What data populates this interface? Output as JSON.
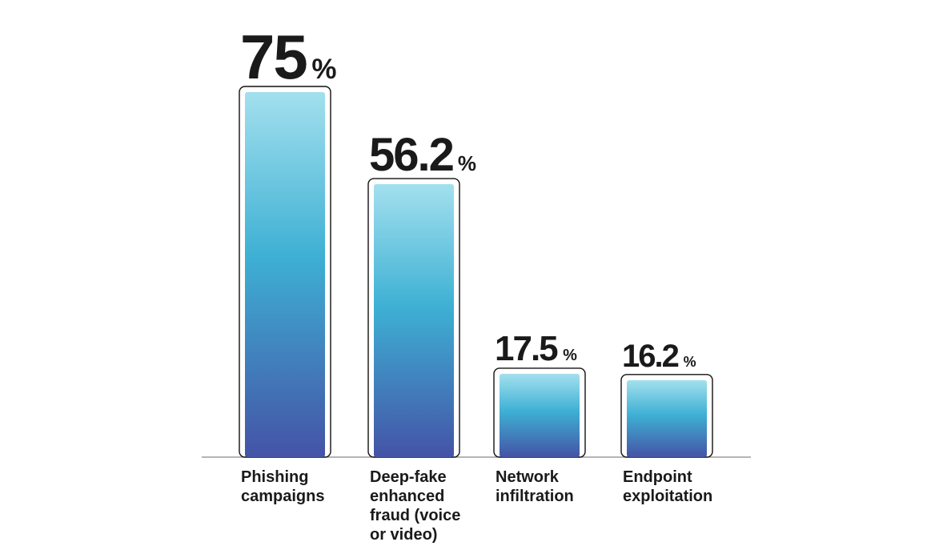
{
  "chart_data": {
    "type": "bar",
    "categories": [
      "Phishing campaigns",
      "Deep-fake enhanced fraud (voice or video)",
      "Network infiltration",
      "Endpoint exploitation"
    ],
    "category_lines": [
      [
        "Phishing",
        "campaigns"
      ],
      [
        "Deep-fake",
        "enhanced",
        "fraud (voice",
        "or video)"
      ],
      [
        "Network",
        "infiltration"
      ],
      [
        "Endpoint",
        "exploitation"
      ]
    ],
    "values": [
      75,
      56.2,
      17.5,
      16.2
    ],
    "value_labels": [
      "75",
      "56.2",
      "17.5",
      "16.2"
    ],
    "unit": "%",
    "ylim": [
      0,
      75
    ],
    "grid": false,
    "colors": {
      "bar_top": "#a3e0ee",
      "bar_mid": "#3eb0d4",
      "bar_bottom": "#4453a6",
      "outline": "#111111",
      "axis": "#888888",
      "text": "#1a1a1a"
    }
  }
}
